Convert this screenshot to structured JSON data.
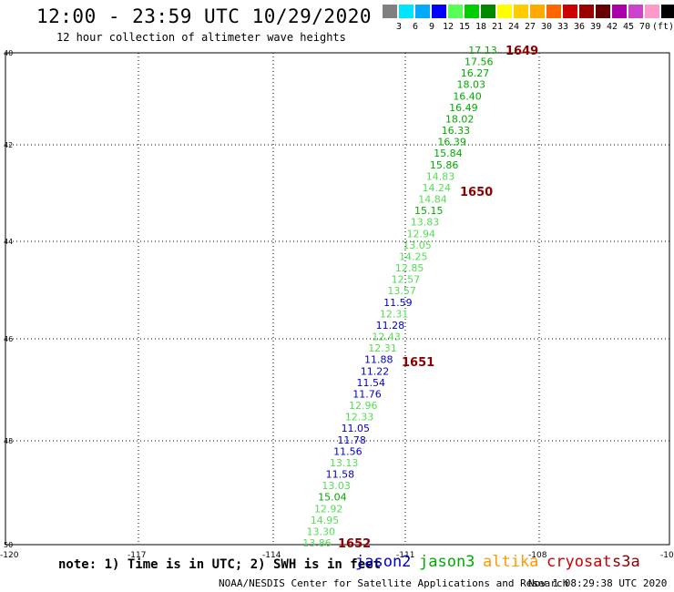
{
  "header": {
    "title": "12:00 - 23:59 UTC 10/29/2020",
    "subtitle": "12 hour collection of altimeter wave heights"
  },
  "legend": {
    "colors": [
      "#808080",
      "#00e5ff",
      "#00aaff",
      "#0000ff",
      "#55ff55",
      "#00cc00",
      "#008800",
      "#ffff00",
      "#ffcc00",
      "#ffaa00",
      "#ff6600",
      "#cc0000",
      "#990000",
      "#660000",
      "#aa00aa",
      "#cc44cc",
      "#ff99cc",
      "#000000"
    ],
    "labels": [
      "3",
      "6",
      "9",
      "12",
      "15",
      "18",
      "21",
      "24",
      "27",
      "30",
      "33",
      "36",
      "39",
      "42",
      "45",
      "70",
      "(ft)"
    ]
  },
  "map": {
    "y_tick_labels": [
      "40",
      "42",
      "44",
      "46",
      "48",
      "50"
    ],
    "x_tick_labels": [
      "-120",
      "-117",
      "-114",
      "-111",
      "-108",
      "-10"
    ],
    "wave_heights": [
      {
        "text": "17.13",
        "color": "#00aa00"
      },
      {
        "text": "17.56",
        "color": "#00aa00"
      },
      {
        "text": "16.27",
        "color": "#00aa00"
      },
      {
        "text": "18.03",
        "color": "#00aa00"
      },
      {
        "text": "16.40",
        "color": "#00aa00"
      },
      {
        "text": "16.49",
        "color": "#00aa00"
      },
      {
        "text": "18.02",
        "color": "#00aa00"
      },
      {
        "text": "16.33",
        "color": "#00aa00"
      },
      {
        "text": "16.39",
        "color": "#00aa00"
      },
      {
        "text": "15.84",
        "color": "#00aa00"
      },
      {
        "text": "15.86",
        "color": "#00aa00"
      },
      {
        "text": "14.83",
        "color": "#55dd55"
      },
      {
        "text": "14.24",
        "color": "#55dd55"
      },
      {
        "text": "14.84",
        "color": "#55dd55"
      },
      {
        "text": "15.15",
        "color": "#00aa00"
      },
      {
        "text": "13.83",
        "color": "#55dd55"
      },
      {
        "text": "12.94",
        "color": "#55dd55"
      },
      {
        "text": "13.05",
        "color": "#55dd55"
      },
      {
        "text": "14.25",
        "color": "#55dd55"
      },
      {
        "text": "12.85",
        "color": "#55dd55"
      },
      {
        "text": "12.57",
        "color": "#55dd55"
      },
      {
        "text": "13.57",
        "color": "#55dd55"
      },
      {
        "text": "11.59",
        "color": "#0000cc"
      },
      {
        "text": "12.31",
        "color": "#55dd55"
      },
      {
        "text": "11.28",
        "color": "#0000cc"
      },
      {
        "text": "12.43",
        "color": "#55dd55"
      },
      {
        "text": "12.31",
        "color": "#55dd55"
      },
      {
        "text": "11.88",
        "color": "#0000cc"
      },
      {
        "text": "11.22",
        "color": "#0000cc"
      },
      {
        "text": "11.54",
        "color": "#0000cc"
      },
      {
        "text": "11.76",
        "color": "#0000cc"
      },
      {
        "text": "12.96",
        "color": "#55dd55"
      },
      {
        "text": "12.33",
        "color": "#55dd55"
      },
      {
        "text": "11.05",
        "color": "#0000cc"
      },
      {
        "text": "11.78",
        "color": "#0000cc"
      },
      {
        "text": "11.56",
        "color": "#0000cc"
      },
      {
        "text": "13.13",
        "color": "#55dd55"
      },
      {
        "text": "11.58",
        "color": "#0000cc"
      },
      {
        "text": "13.03",
        "color": "#55dd55"
      },
      {
        "text": "15.04",
        "color": "#00aa00"
      },
      {
        "text": "12.92",
        "color": "#55dd55"
      },
      {
        "text": "14.95",
        "color": "#55dd55"
      },
      {
        "text": "13.30",
        "color": "#55dd55"
      },
      {
        "text": "13.86",
        "color": "#55dd55"
      }
    ],
    "time_marks": [
      "1649",
      "1650",
      "1651",
      "1652"
    ],
    "time_mark_color": "#8b0000"
  },
  "footer": {
    "note": "note: 1) Time is in UTC; 2) SWH is in feet",
    "satellites": [
      {
        "name": "jason2",
        "color": "#0000cc"
      },
      {
        "name": "jason3",
        "color": "#00aa00"
      },
      {
        "name": "altika",
        "color": "#ff9900"
      },
      {
        "name": "cryosat",
        "color": "#cc0000"
      },
      {
        "name": "s3a",
        "color": "#8b0000"
      }
    ],
    "credit": "NOAA/NESDIS Center for Satellite Applications and Research",
    "timestamp": "Nov  1 08:29:38 UTC 2020"
  }
}
